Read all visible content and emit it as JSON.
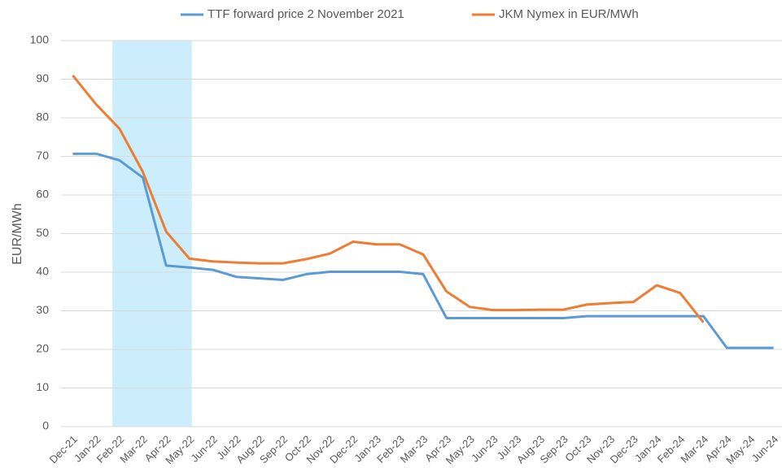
{
  "chart_data": {
    "type": "line",
    "y_label": "EUR/MWh",
    "categories": [
      "Dec-21",
      "Jan-22",
      "Feb-22",
      "Mar-22",
      "Apr-22",
      "May-22",
      "Jun-22",
      "Jul-22",
      "Aug-22",
      "Sep-22",
      "Oct-22",
      "Nov-22",
      "Dec-22",
      "Jan-23",
      "Feb-23",
      "Mar-23",
      "Apr-23",
      "May-23",
      "Jun-23",
      "Jul-23",
      "Aug-23",
      "Sep-23",
      "Oct-23",
      "Nov-23",
      "Dec-23",
      "Jan-24",
      "Feb-24",
      "Mar-24",
      "Apr-24",
      "May-24",
      "Jun-24"
    ],
    "series": [
      {
        "name": "TTF forward price 2 November 2021",
        "color": "#5b9bd5",
        "values": [
          70.7,
          70.7,
          69,
          64.5,
          41.7,
          41.2,
          40.6,
          38.8,
          38.4,
          38.0,
          39.5,
          40.1,
          40.1,
          40.1,
          40.1,
          39.5,
          28.1,
          28.1,
          28.1,
          28.1,
          28.1,
          28.1,
          28.6,
          28.6,
          28.6,
          28.6,
          28.6,
          28.6,
          20.4,
          20.4,
          20.4
        ]
      },
      {
        "name": "JKM Nymex in EUR/MWh",
        "color": "#ed7d31",
        "values": [
          91,
          83.5,
          77.2,
          66,
          50.5,
          43.5,
          42.8,
          42.5,
          42.3,
          42.3,
          43.4,
          44.8,
          47.9,
          47.2,
          47.2,
          44.6,
          35,
          31,
          30.2,
          30.2,
          30.3,
          30.3,
          31.6,
          32,
          32.3,
          36.6,
          34.6,
          27,
          null,
          null,
          null
        ]
      }
    ],
    "highlight": {
      "from": "Feb-22",
      "to": "May-22",
      "color": "#ccedfb"
    },
    "ylim": [
      0,
      100
    ],
    "yticks": [
      0,
      10,
      20,
      30,
      40,
      50,
      60,
      70,
      80,
      90,
      100
    ],
    "grid": true,
    "legend": "top"
  }
}
